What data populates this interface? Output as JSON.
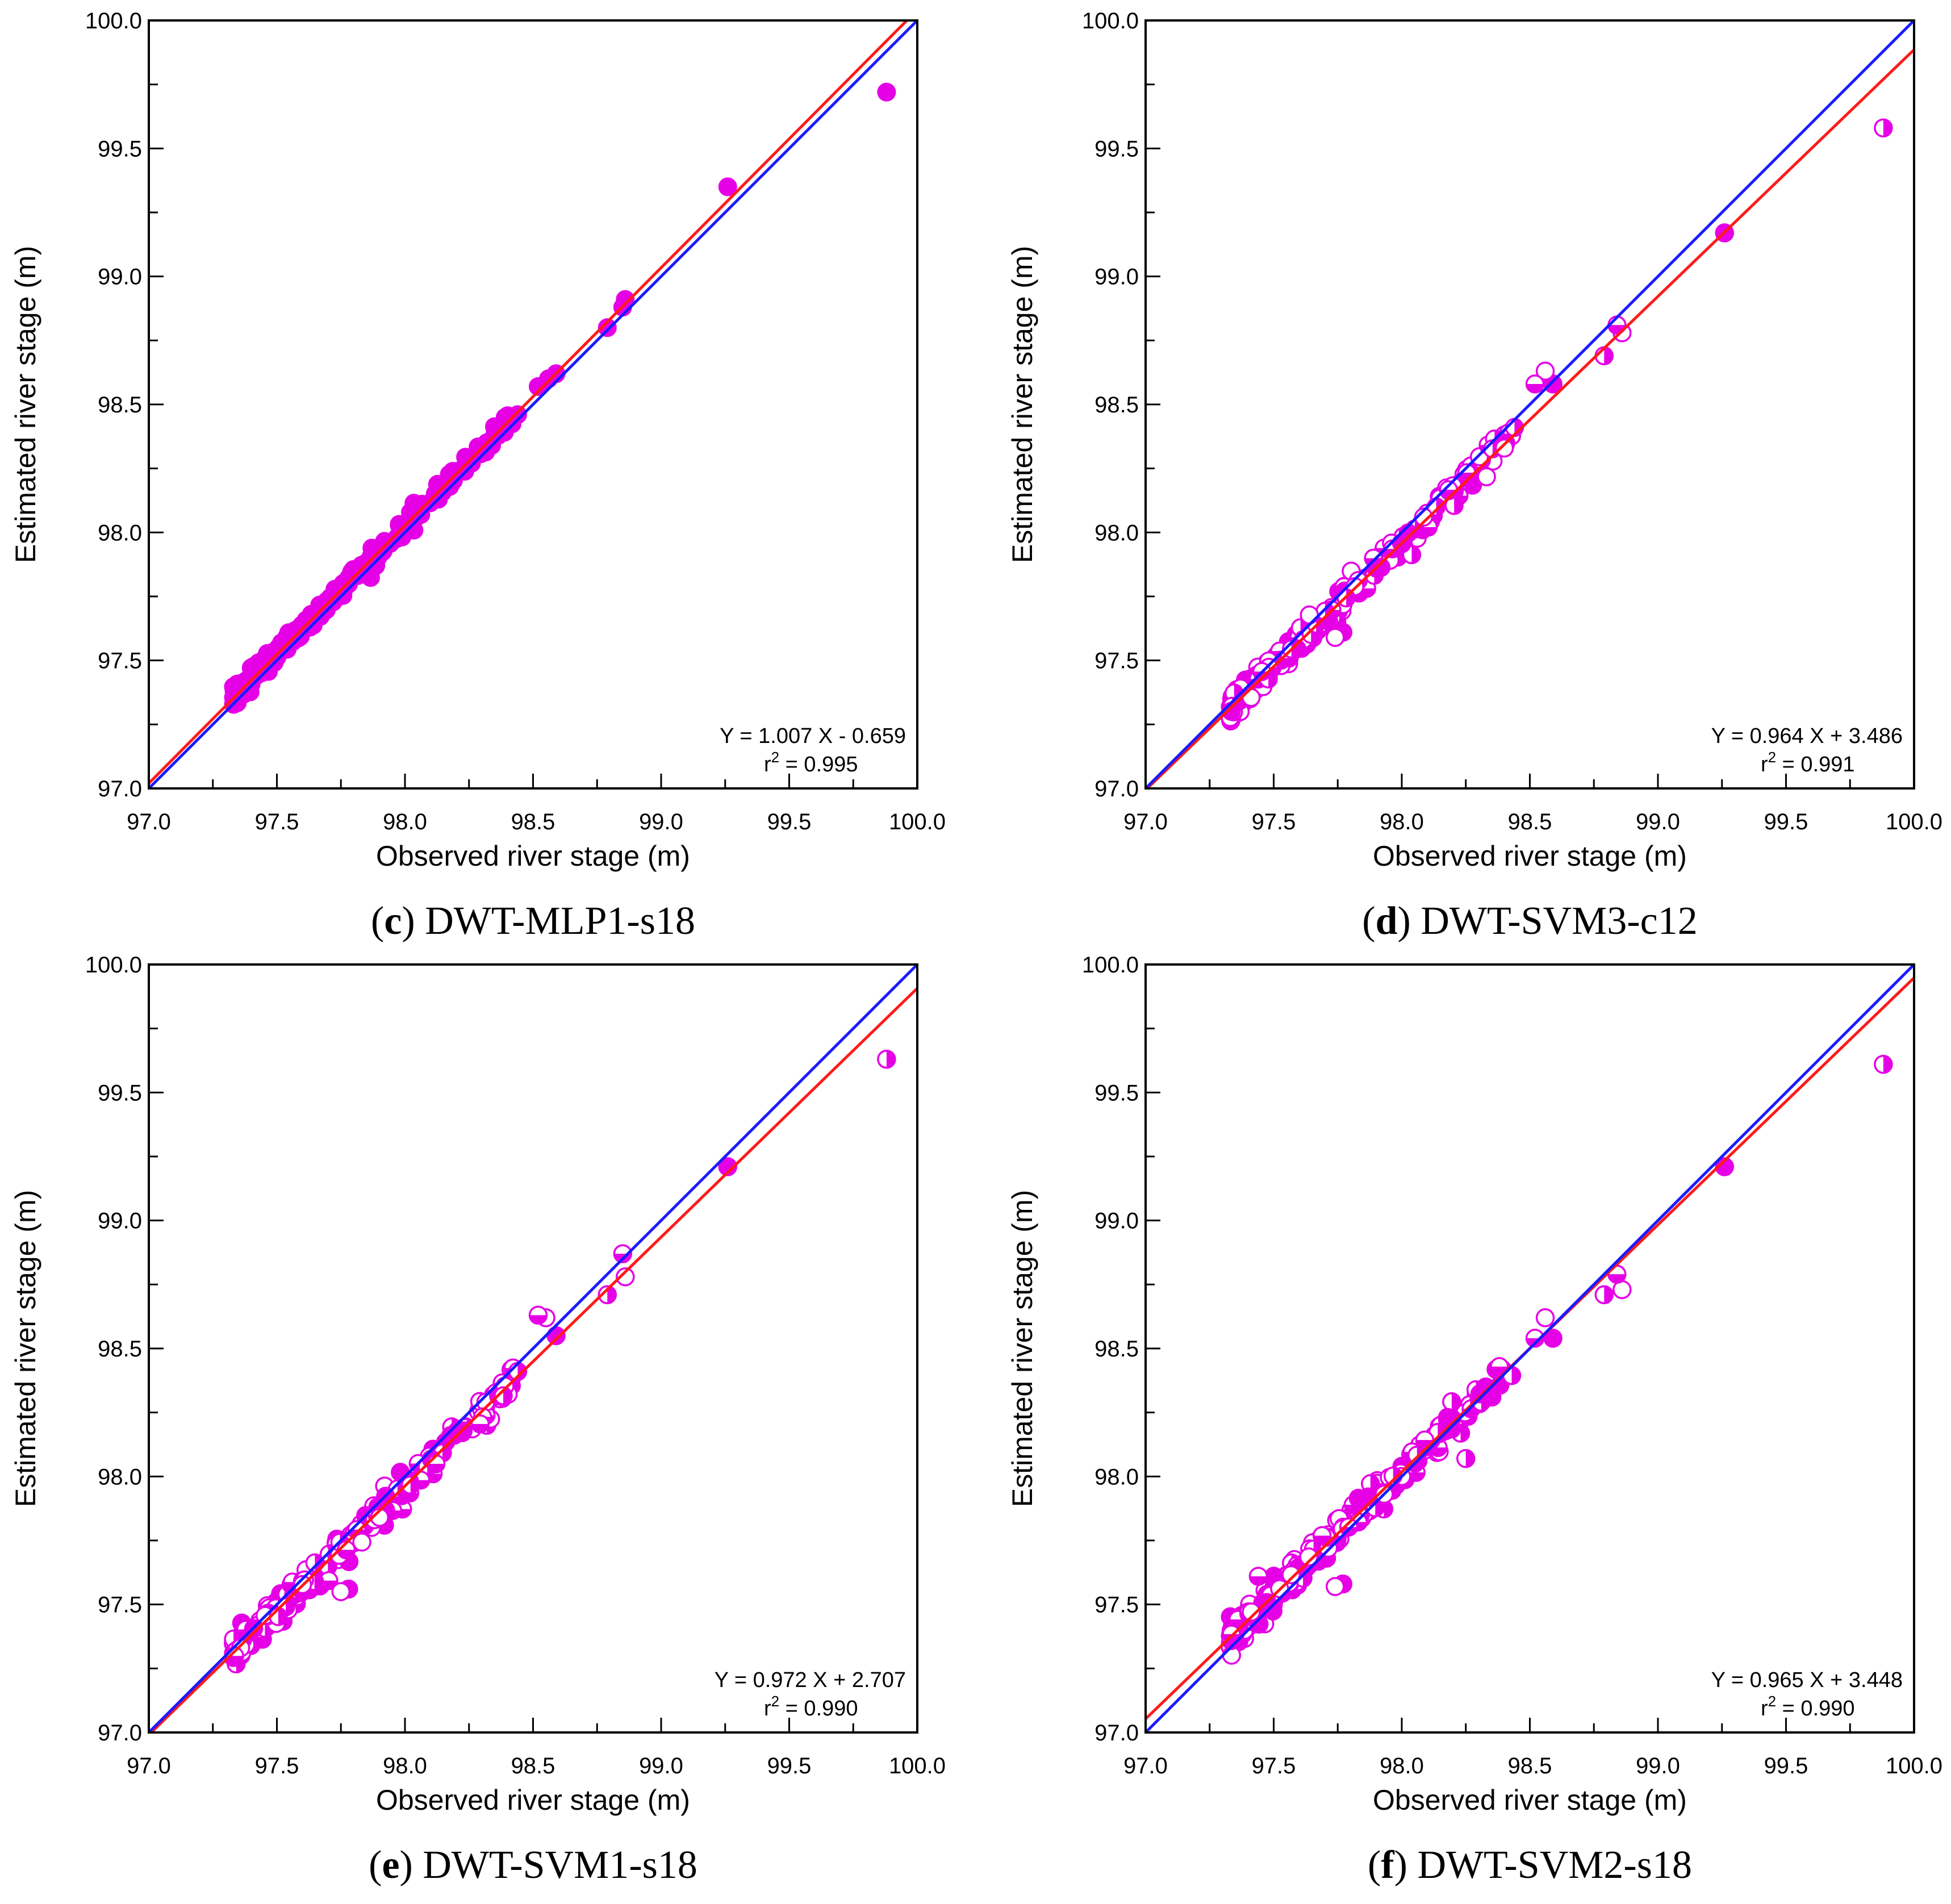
{
  "chart_data": [
    {
      "type": "scatter",
      "panel_id": "c",
      "caption_label": "c",
      "caption_text": "DWT-MLP1-s18",
      "xlabel": "Observed river stage (m)",
      "ylabel": "Estimated river stage (m)",
      "xlim": [
        97.0,
        100.0
      ],
      "ylim": [
        97.0,
        100.0
      ],
      "xticks": [
        "97.0",
        "97.5",
        "98.0",
        "98.5",
        "99.0",
        "99.5",
        "100.0"
      ],
      "yticks": [
        "97.0",
        "97.5",
        "98.0",
        "98.5",
        "99.0",
        "99.5",
        "100.0"
      ],
      "equation": "Y = 1.007 X - 0.659",
      "r2_prefix": "r",
      "r2_sup": "2",
      "r2_value": " = 0.995",
      "fit": {
        "slope": 1.007,
        "intercept": -0.659,
        "color": "#ff1a1a"
      },
      "identity": {
        "color": "#1a1aff"
      },
      "marker_color": "#e600e6",
      "marker_style": "filled",
      "outliers": [
        [
          99.88,
          99.72
        ],
        [
          99.26,
          99.35
        ],
        [
          98.86,
          98.91
        ],
        [
          98.85,
          98.88
        ],
        [
          98.79,
          98.8
        ],
        [
          98.59,
          98.62
        ],
        [
          98.56,
          98.6
        ],
        [
          98.52,
          98.57
        ],
        [
          98.44,
          98.46
        ],
        [
          98.41,
          98.44
        ]
      ],
      "n_points": 230,
      "noise_seed": 11,
      "noise_sd": 0.018
    },
    {
      "type": "scatter",
      "panel_id": "d",
      "caption_label": "d",
      "caption_text": "DWT-SVM3-c12",
      "xlabel": "Observed river stage (m)",
      "ylabel": "Estimated river stage (m)",
      "xlim": [
        97.0,
        100.0
      ],
      "ylim": [
        97.0,
        100.0
      ],
      "xticks": [
        "97.0",
        "97.5",
        "98.0",
        "98.5",
        "99.0",
        "99.5",
        "100.0"
      ],
      "yticks": [
        "97.0",
        "97.5",
        "98.0",
        "98.5",
        "99.0",
        "99.5",
        "100.0"
      ],
      "equation": "Y = 0.964 X + 3.486",
      "r2_prefix": "r",
      "r2_sup": "2",
      "r2_value": " = 0.991",
      "fit": {
        "slope": 0.964,
        "intercept": 3.486,
        "color": "#ff1a1a"
      },
      "identity": {
        "color": "#1a1aff"
      },
      "marker_color": "#e600e6",
      "marker_style": "mixed",
      "outliers": [
        [
          99.88,
          99.58
        ],
        [
          99.26,
          99.17
        ],
        [
          98.86,
          98.78
        ],
        [
          98.84,
          98.81
        ],
        [
          98.79,
          98.69
        ],
        [
          98.59,
          98.58
        ],
        [
          98.56,
          98.63
        ],
        [
          98.52,
          98.58
        ],
        [
          98.44,
          98.41
        ],
        [
          97.77,
          97.61
        ],
        [
          97.74,
          97.59
        ]
      ],
      "n_points": 230,
      "noise_seed": 23,
      "noise_sd": 0.028
    },
    {
      "type": "scatter",
      "panel_id": "e",
      "caption_label": "e",
      "caption_text": "DWT-SVM1-s18",
      "xlabel": "Observed river stage (m)",
      "ylabel": "Estimated river stage (m)",
      "xlim": [
        97.0,
        100.0
      ],
      "ylim": [
        97.0,
        100.0
      ],
      "xticks": [
        "97.0",
        "97.5",
        "98.0",
        "98.5",
        "99.0",
        "99.5",
        "100.0"
      ],
      "yticks": [
        "97.0",
        "97.5",
        "98.0",
        "98.5",
        "99.0",
        "99.5",
        "100.0"
      ],
      "equation": "Y = 0.972 X + 2.707",
      "r2_prefix": "r",
      "r2_sup": "2",
      "r2_value": " = 0.990",
      "fit": {
        "slope": 0.972,
        "intercept": 2.707,
        "color": "#ff1a1a"
      },
      "identity": {
        "color": "#1a1aff"
      },
      "marker_color": "#e600e6",
      "marker_style": "mixed",
      "outliers": [
        [
          99.88,
          99.63
        ],
        [
          99.26,
          99.21
        ],
        [
          98.86,
          98.78
        ],
        [
          98.85,
          98.87
        ],
        [
          98.79,
          98.71
        ],
        [
          98.59,
          98.55
        ],
        [
          98.55,
          98.62
        ],
        [
          98.52,
          98.63
        ],
        [
          98.44,
          98.41
        ],
        [
          97.78,
          97.56
        ],
        [
          97.75,
          97.55
        ]
      ],
      "n_points": 230,
      "noise_seed": 37,
      "noise_sd": 0.03
    },
    {
      "type": "scatter",
      "panel_id": "f",
      "caption_label": "f",
      "caption_text": "DWT-SVM2-s18",
      "xlabel": "Observed river stage (m)",
      "ylabel": "Estimated river stage (m)",
      "xlim": [
        97.0,
        100.0
      ],
      "ylim": [
        97.0,
        100.0
      ],
      "xticks": [
        "97.0",
        "97.5",
        "98.0",
        "98.5",
        "99.0",
        "99.5",
        "100.0"
      ],
      "yticks": [
        "97.0",
        "97.5",
        "98.0",
        "98.5",
        "99.0",
        "99.5",
        "100.0"
      ],
      "equation": "Y = 0.965 X + 3.448",
      "r2_prefix": "r",
      "r2_sup": "2",
      "r2_value": " = 0.990",
      "fit": {
        "slope": 0.965,
        "intercept": 3.448,
        "color": "#ff1a1a"
      },
      "identity": {
        "color": "#1a1aff"
      },
      "marker_color": "#e600e6",
      "marker_style": "mixed",
      "outliers": [
        [
          99.88,
          99.61
        ],
        [
          99.26,
          99.21
        ],
        [
          98.86,
          98.73
        ],
        [
          98.84,
          98.79
        ],
        [
          98.79,
          98.71
        ],
        [
          98.59,
          98.54
        ],
        [
          98.56,
          98.62
        ],
        [
          98.52,
          98.54
        ],
        [
          98.25,
          98.07
        ],
        [
          97.77,
          97.58
        ],
        [
          97.74,
          97.57
        ],
        [
          97.44,
          97.61
        ]
      ],
      "n_points": 230,
      "noise_seed": 51,
      "noise_sd": 0.03
    }
  ]
}
